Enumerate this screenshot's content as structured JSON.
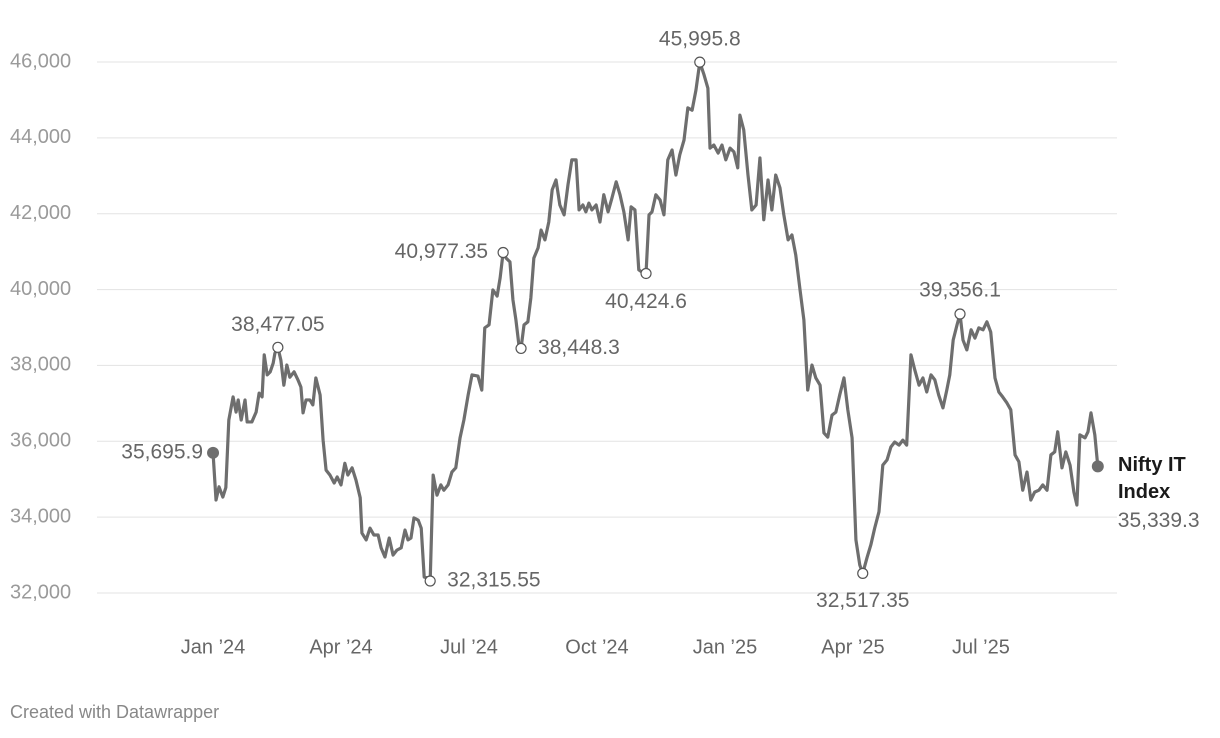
{
  "chart_data": {
    "type": "line",
    "x": [
      0,
      0.07,
      0.14,
      0.23,
      0.3,
      0.37,
      0.47,
      0.54,
      0.59,
      0.66,
      0.75,
      0.8,
      0.91,
      1.01,
      1.08,
      1.15,
      1.2,
      1.27,
      1.34,
      1.41,
      1.45,
      1.52,
      1.59,
      1.66,
      1.73,
      1.8,
      1.9,
      1.99,
      2.06,
      2.11,
      2.18,
      2.27,
      2.34,
      2.41,
      2.51,
      2.58,
      2.65,
      2.74,
      2.84,
      2.91,
      3.0,
      3.09,
      3.16,
      3.26,
      3.35,
      3.45,
      3.49,
      3.59,
      3.68,
      3.77,
      3.87,
      3.94,
      4.03,
      4.13,
      4.22,
      4.31,
      4.41,
      4.5,
      4.57,
      4.64,
      4.71,
      4.81,
      4.88,
      4.95,
      5.04,
      5.09,
      5.16,
      5.25,
      5.34,
      5.41,
      5.51,
      5.6,
      5.69,
      5.79,
      5.88,
      5.98,
      6.07,
      6.21,
      6.3,
      6.37,
      6.47,
      6.56,
      6.66,
      6.73,
      6.8,
      6.87,
      6.96,
      7.03,
      7.1,
      7.17,
      7.22,
      7.29,
      7.38,
      7.45,
      7.52,
      7.62,
      7.69,
      7.78,
      7.87,
      7.95,
      8.04,
      8.13,
      8.23,
      8.32,
      8.41,
      8.51,
      8.58,
      8.67,
      8.74,
      8.81,
      8.88,
      8.98,
      9.07,
      9.16,
      9.26,
      9.35,
      9.45,
      9.54,
      9.63,
      9.73,
      9.8,
      9.89,
      9.98,
      10.08,
      10.15,
      10.22,
      10.29,
      10.38,
      10.48,
      10.57,
      10.66,
      10.76,
      10.85,
      10.94,
      11.04,
      11.13,
      11.23,
      11.32,
      11.41,
      11.51,
      11.6,
      11.65,
      11.74,
      11.84,
      11.93,
      12.02,
      12.12,
      12.21,
      12.3,
      12.35,
      12.44,
      12.54,
      12.63,
      12.73,
      12.82,
      12.91,
      13.01,
      13.1,
      13.19,
      13.29,
      13.38,
      13.48,
      13.57,
      13.66,
      13.76,
      13.85,
      13.94,
      14.04,
      14.13,
      14.23,
      14.32,
      14.41,
      14.51,
      14.6,
      14.69,
      14.79,
      14.88,
      14.98,
      15.07,
      15.16,
      15.23,
      15.33,
      15.42,
      15.51,
      15.61,
      15.7,
      15.8,
      15.89,
      15.98,
      16.08,
      16.17,
      16.26,
      16.36,
      16.45,
      16.55,
      16.64,
      16.73,
      16.83,
      16.92,
      17.01,
      17.11,
      17.2,
      17.27,
      17.35,
      17.44,
      17.51,
      17.58,
      17.67,
      17.77,
      17.86,
      17.95,
      18.05,
      18.14,
      18.23,
      18.33,
      18.42,
      18.51,
      18.61,
      18.7,
      18.8,
      18.89,
      18.98,
      19.08,
      19.17,
      19.26,
      19.36,
      19.45,
      19.55,
      19.64,
      19.73,
      19.8,
      19.9,
      19.99,
      20.09,
      20.18,
      20.25,
      20.32,
      20.44,
      20.51,
      20.58,
      20.67,
      20.74
    ],
    "series": [
      {
        "name": "Nifty IT Index",
        "color": "#6e6e6e",
        "values": [
          35695.9,
          34450,
          34800,
          34530,
          34780,
          36560,
          37170,
          36770,
          37090,
          36560,
          37090,
          36510,
          36510,
          36770,
          37270,
          37170,
          38280,
          37750,
          37830,
          38060,
          38320,
          38477.05,
          38140,
          37480,
          38010,
          37690,
          37830,
          37620,
          37430,
          36750,
          37090,
          37090,
          36960,
          37670,
          37220,
          36030,
          35240,
          35110,
          34900,
          35060,
          34850,
          35420,
          35110,
          35300,
          34980,
          34510,
          33580,
          33400,
          33710,
          33530,
          33530,
          33190,
          32950,
          33450,
          33000,
          33130,
          33190,
          33660,
          33400,
          33450,
          33980,
          33920,
          33710,
          32420,
          32395,
          32315.55,
          35110,
          34580,
          34850,
          34710,
          34850,
          35190,
          35300,
          36090,
          36560,
          37220,
          37750,
          37720,
          37350,
          38990,
          39070,
          39990,
          39830,
          40310,
          40977.35,
          40830,
          40730,
          39730,
          39200,
          38540,
          38448.3,
          39070,
          39150,
          39780,
          40830,
          41100,
          41570,
          41310,
          41780,
          42630,
          42890,
          42230,
          41970,
          42760,
          43420,
          43420,
          42100,
          42230,
          42050,
          42280,
          42100,
          42230,
          41780,
          42500,
          42050,
          42410,
          42840,
          42500,
          42050,
          41310,
          42180,
          42100,
          40520,
          40440,
          40424.6,
          41970,
          42050,
          42500,
          42360,
          41970,
          43420,
          43680,
          43020,
          43550,
          43940,
          44790,
          44730,
          45260,
          45995.8,
          45660,
          45310,
          43730,
          43810,
          43600,
          43810,
          43420,
          43730,
          43630,
          43210,
          44600,
          44210,
          43020,
          42100,
          42230,
          43470,
          41840,
          42890,
          42100,
          43020,
          42680,
          41970,
          41310,
          41440,
          40910,
          39990,
          39200,
          37350,
          38010,
          37670,
          37480,
          36220,
          36110,
          36690,
          36770,
          37220,
          37670,
          36830,
          36090,
          33400,
          32740,
          32517.35,
          32930,
          33270,
          33710,
          34140,
          35370,
          35510,
          35850,
          35980,
          35900,
          36030,
          35900,
          38280,
          37880,
          37480,
          37670,
          37300,
          37750,
          37620,
          37220,
          36880,
          37350,
          37750,
          38670,
          39070,
          39356.1,
          38670,
          38410,
          38940,
          38720,
          38990,
          38940,
          39150,
          38880,
          37670,
          37300,
          37170,
          37010,
          36830,
          35640,
          35460,
          34710,
          35190,
          34450,
          34660,
          34710,
          34850,
          34710,
          35640,
          35720,
          36250,
          35300,
          35720,
          35370,
          34660,
          34320,
          36170,
          36090,
          36250,
          36750,
          36170,
          35339.3
        ],
        "value_labels": [
          "35,695.9",
          null,
          null,
          null,
          null,
          null,
          null,
          null,
          null,
          null,
          null,
          null,
          null,
          null,
          null,
          null,
          null,
          null,
          null,
          null,
          null,
          "38,477.05",
          null,
          null,
          null,
          null,
          null,
          null,
          null,
          null,
          null,
          null,
          null,
          null,
          null,
          null,
          null,
          null,
          null,
          null,
          null,
          null,
          null,
          null,
          null,
          null,
          null,
          null,
          null,
          null,
          null,
          null,
          null,
          null,
          null,
          null,
          null,
          null,
          null,
          null,
          null,
          null,
          null,
          null,
          null,
          "32,315.55",
          null,
          null,
          null,
          null,
          null,
          null,
          null,
          null,
          null,
          null,
          null,
          null,
          null,
          null,
          null,
          null,
          null,
          null,
          "40,977.35",
          null,
          null,
          null,
          null,
          null,
          "38,448.3",
          null,
          null,
          null,
          null,
          null,
          null,
          null,
          null,
          null,
          null,
          null,
          null,
          null,
          null,
          null,
          null,
          null,
          null,
          null,
          null,
          null,
          null,
          null,
          null,
          null,
          null,
          null,
          null,
          null,
          null,
          null,
          null,
          null,
          "40,424.6",
          null,
          null,
          null,
          null,
          null,
          null,
          null,
          null,
          null,
          null,
          null,
          null,
          null,
          "45,995.8",
          null,
          null,
          null,
          null,
          null,
          null,
          null,
          null,
          null,
          null,
          null,
          null,
          null,
          null,
          null,
          null,
          null,
          null,
          null,
          null,
          null,
          null,
          null,
          null,
          null,
          null,
          null,
          null,
          null,
          null,
          null,
          null,
          null,
          null,
          null,
          null,
          null,
          null,
          null,
          null,
          null,
          "32,517.35",
          null,
          null,
          null,
          null,
          null,
          null,
          null,
          null,
          null,
          null,
          null,
          null,
          null,
          null,
          null,
          null,
          null,
          null,
          null,
          null,
          null,
          null,
          null,
          null,
          "39,356.1",
          null,
          null,
          null,
          null,
          null,
          null,
          null,
          null,
          null,
          null,
          null,
          null,
          null,
          null,
          null,
          null,
          null,
          null,
          null,
          null,
          null,
          null,
          null,
          null,
          null,
          null,
          null,
          null,
          null,
          null,
          null,
          null,
          null,
          null,
          null,
          "35,339.3"
        ]
      }
    ],
    "xlim": [
      -2.72,
      21.19
    ],
    "xticks": [
      {
        "value": 0,
        "label": "Jan ’24"
      },
      {
        "value": 3,
        "label": "Apr ’24"
      },
      {
        "value": 6,
        "label": "Jul ’24"
      },
      {
        "value": 9,
        "label": "Oct ’24"
      },
      {
        "value": 12,
        "label": "Jan ’25"
      },
      {
        "value": 15,
        "label": "Apr ’25"
      },
      {
        "value": 18,
        "label": "Jul ’25"
      }
    ],
    "ylim": [
      32000,
      46000
    ],
    "yticks": [
      {
        "value": 32000,
        "label": "32,000"
      },
      {
        "value": 34000,
        "label": "34,000"
      },
      {
        "value": 36000,
        "label": "36,000"
      },
      {
        "value": 38000,
        "label": "38,000"
      },
      {
        "value": 40000,
        "label": "40,000"
      },
      {
        "value": 42000,
        "label": "42,000"
      },
      {
        "value": 44000,
        "label": "44,000"
      },
      {
        "value": 46000,
        "label": "46,000"
      }
    ],
    "grid": true,
    "credit": "Created with Datawrapper"
  }
}
